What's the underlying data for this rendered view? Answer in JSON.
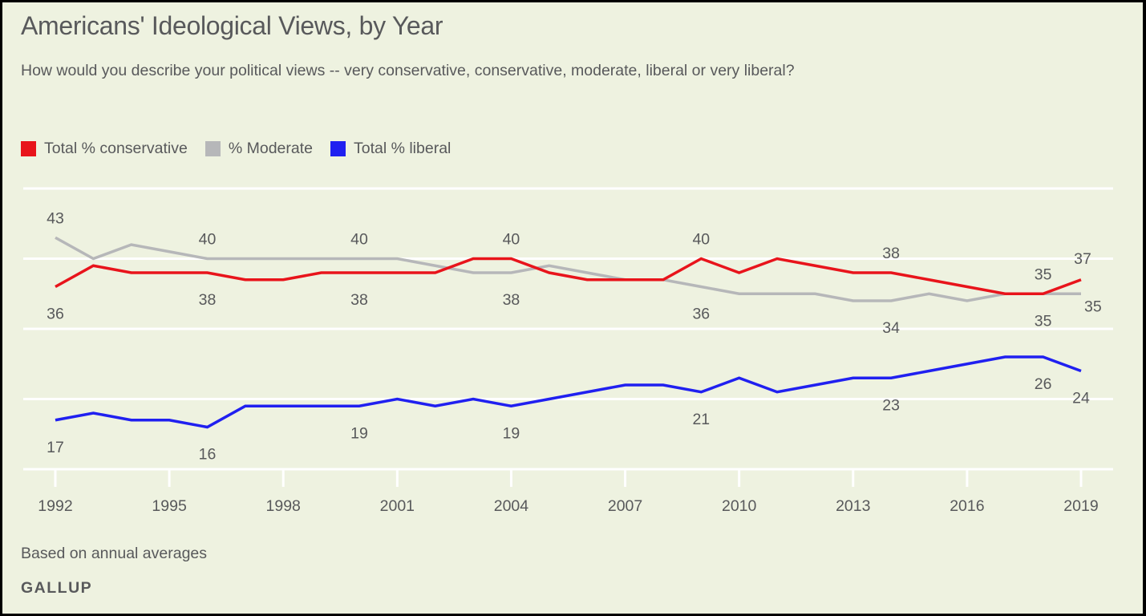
{
  "header": {
    "title": "Americans' Ideological Views, by Year",
    "subtitle": "How would you describe your political views -- very conservative, conservative, moderate, liberal or very liberal?"
  },
  "footer": {
    "note": "Based on annual averages",
    "brand": "GALLUP"
  },
  "colors": {
    "background": "#EEF2E0",
    "gridline": "#FFFFFF",
    "text": "#58595B",
    "conservative": "#E8141B",
    "moderate": "#B6B7B9",
    "liberal": "#2020F0"
  },
  "chart_data": {
    "type": "line",
    "title": "Americans' Ideological Views, by Year",
    "subtitle": "How would you describe your political views -- very conservative, conservative, moderate, liberal or very liberal?",
    "xlabel": "",
    "ylabel": "",
    "x": [
      1992,
      1993,
      1994,
      1995,
      1996,
      1997,
      1998,
      1999,
      2000,
      2001,
      2002,
      2003,
      2004,
      2005,
      2006,
      2007,
      2008,
      2009,
      2010,
      2011,
      2012,
      2013,
      2014,
      2015,
      2016,
      2017,
      2018,
      2019
    ],
    "xticks": [
      "1992",
      "1995",
      "1998",
      "2001",
      "2004",
      "2007",
      "2010",
      "2013",
      "2016",
      "2019"
    ],
    "ylim": [
      10,
      50
    ],
    "ygrid": [
      10,
      20,
      30,
      40,
      50
    ],
    "grid": true,
    "legend_position": "top-left",
    "series": [
      {
        "name": "Total % conservative",
        "key": "conservative",
        "values": [
          36,
          39,
          38,
          38,
          38,
          37,
          37,
          38,
          38,
          38,
          38,
          40,
          40,
          38,
          37,
          37,
          37,
          40,
          38,
          40,
          39,
          38,
          38,
          37,
          36,
          35,
          35,
          37
        ]
      },
      {
        "name": "% Moderate",
        "key": "moderate",
        "values": [
          43,
          40,
          42,
          41,
          40,
          40,
          40,
          40,
          40,
          40,
          39,
          38,
          38,
          39,
          38,
          37,
          37,
          36,
          35,
          35,
          35,
          34,
          34,
          35,
          34,
          35,
          35,
          35
        ]
      },
      {
        "name": "Total % liberal",
        "key": "liberal",
        "values": [
          17,
          18,
          17,
          17,
          16,
          19,
          19,
          19,
          19,
          20,
          19,
          20,
          19,
          20,
          21,
          22,
          22,
          21,
          23,
          21,
          22,
          23,
          23,
          24,
          25,
          26,
          26,
          24
        ]
      }
    ],
    "annotations": [
      {
        "series": "moderate",
        "year": 1992,
        "text": "43",
        "pos": "above"
      },
      {
        "series": "conservative",
        "year": 1992,
        "text": "36",
        "pos": "below"
      },
      {
        "series": "liberal",
        "year": 1992,
        "text": "17",
        "pos": "below"
      },
      {
        "series": "moderate",
        "year": 1996,
        "text": "40",
        "pos": "above"
      },
      {
        "series": "conservative",
        "year": 1996,
        "text": "38",
        "pos": "below"
      },
      {
        "series": "liberal",
        "year": 1996,
        "text": "16",
        "pos": "below"
      },
      {
        "series": "moderate",
        "year": 2000,
        "text": "40",
        "pos": "above"
      },
      {
        "series": "conservative",
        "year": 2000,
        "text": "38",
        "pos": "below"
      },
      {
        "series": "liberal",
        "year": 2000,
        "text": "19",
        "pos": "below"
      },
      {
        "series": "conservative",
        "year": 2004,
        "text": "40",
        "pos": "above"
      },
      {
        "series": "moderate",
        "year": 2004,
        "text": "38",
        "pos": "below"
      },
      {
        "series": "liberal",
        "year": 2004,
        "text": "19",
        "pos": "below"
      },
      {
        "series": "conservative",
        "year": 2009,
        "text": "40",
        "pos": "above"
      },
      {
        "series": "moderate",
        "year": 2009,
        "text": "36",
        "pos": "below"
      },
      {
        "series": "liberal",
        "year": 2009,
        "text": "21",
        "pos": "below"
      },
      {
        "series": "conservative",
        "year": 2014,
        "text": "38",
        "pos": "above"
      },
      {
        "series": "moderate",
        "year": 2014,
        "text": "34",
        "pos": "below"
      },
      {
        "series": "liberal",
        "year": 2014,
        "text": "23",
        "pos": "below"
      },
      {
        "series": "conservative",
        "year": 2018,
        "text": "35",
        "pos": "above"
      },
      {
        "series": "moderate",
        "year": 2018,
        "text": "35",
        "pos": "below"
      },
      {
        "series": "liberal",
        "year": 2018,
        "text": "26",
        "pos": "below"
      },
      {
        "series": "conservative",
        "year": 2019,
        "text": "37",
        "pos": "above"
      },
      {
        "series": "moderate",
        "year": 2019,
        "text": "35",
        "pos": "right"
      },
      {
        "series": "liberal",
        "year": 2019,
        "text": "24",
        "pos": "below"
      }
    ]
  }
}
